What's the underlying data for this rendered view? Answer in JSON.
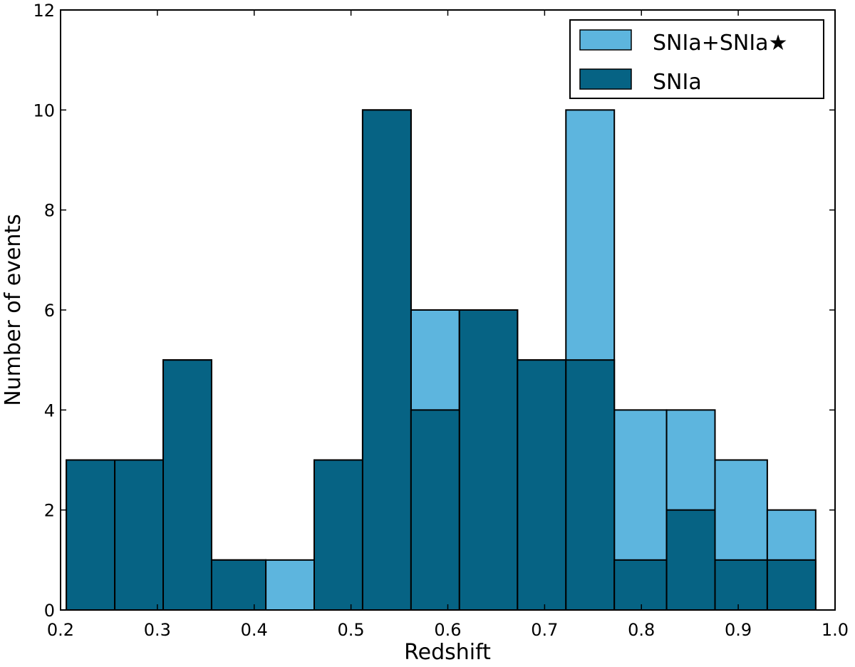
{
  "chart_data": {
    "type": "bar",
    "title": "",
    "xlabel": "Redshift",
    "ylabel": "Number of events",
    "xlim": [
      0.2,
      1.0
    ],
    "ylim": [
      0,
      12
    ],
    "xticks": [
      "0.2",
      "0.3",
      "0.4",
      "0.5",
      "0.6",
      "0.7",
      "0.8",
      "0.9",
      "1.0"
    ],
    "yticks": [
      "0",
      "2",
      "4",
      "6",
      "8",
      "10",
      "12"
    ],
    "grid": false,
    "legend_position": "top-right",
    "bin_edges": [
      0.206,
      0.256,
      0.306,
      0.356,
      0.412,
      0.462,
      0.512,
      0.562,
      0.612,
      0.672,
      0.722,
      0.772,
      0.826,
      0.876,
      0.93,
      0.98
    ],
    "series": [
      {
        "name": "SNIa+SNIa★",
        "color": "#5db5de",
        "values": [
          3,
          3,
          5,
          1,
          1,
          3,
          10,
          6,
          6,
          5,
          10,
          4,
          4,
          3,
          2
        ]
      },
      {
        "name": "SNIa",
        "color": "#066384",
        "values": [
          3,
          3,
          5,
          1,
          0,
          3,
          10,
          4,
          6,
          5,
          5,
          1,
          2,
          1,
          1
        ]
      }
    ]
  }
}
